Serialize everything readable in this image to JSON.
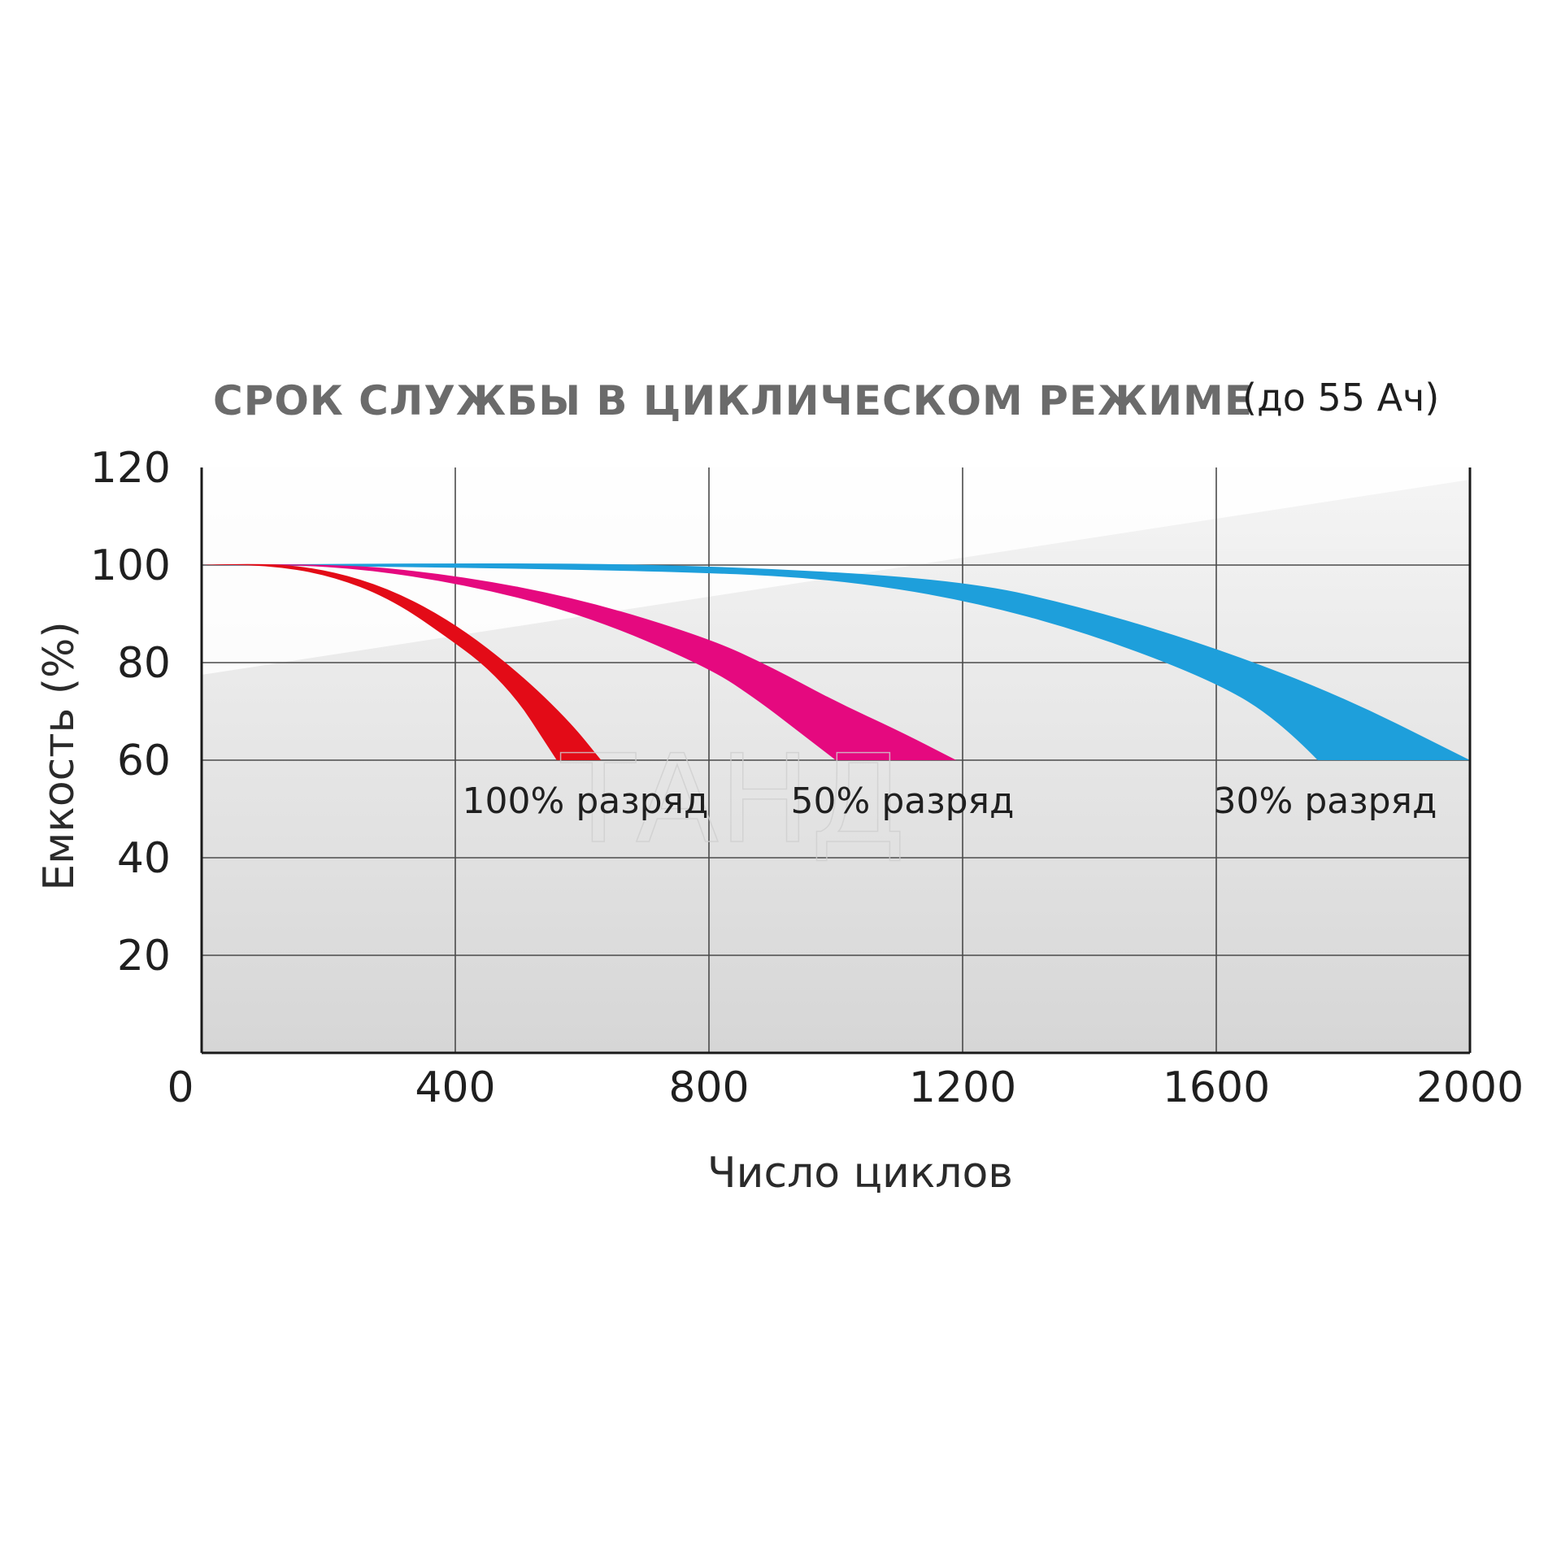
{
  "chart_data": {
    "type": "area",
    "title": "СРОК СЛУЖБЫ В ЦИКЛИЧЕСКОМ РЕЖИМЕ",
    "subtitle": "(до 55 Ач)",
    "xlabel": "Число циклов",
    "ylabel": "Емкость (%)",
    "xlim": [
      0,
      2000
    ],
    "ylim": [
      0,
      120
    ],
    "x_ticks": [
      "0",
      "400",
      "800",
      "1200",
      "1600",
      "2000"
    ],
    "x_tick_values": [
      0,
      400,
      800,
      1200,
      1600,
      2000
    ],
    "y_ticks": [
      "20",
      "40",
      "60",
      "80",
      "100",
      "120"
    ],
    "y_tick_values": [
      20,
      40,
      60,
      80,
      100,
      120
    ],
    "grid": true,
    "series": [
      {
        "name": "100% разряд",
        "color": "#e30b17",
        "upper": [
          [
            0,
            100
          ],
          [
            100,
            100.5
          ],
          [
            200,
            99
          ],
          [
            300,
            95
          ],
          [
            400,
            88
          ],
          [
            500,
            78
          ],
          [
            580,
            68
          ],
          [
            630,
            60
          ]
        ],
        "lower": [
          [
            0,
            100
          ],
          [
            100,
            100
          ],
          [
            200,
            98
          ],
          [
            300,
            93
          ],
          [
            400,
            84
          ],
          [
            450,
            79
          ],
          [
            500,
            72
          ],
          [
            540,
            64
          ],
          [
            560,
            60
          ]
        ]
      },
      {
        "name": "50% разряд",
        "color": "#e5097f",
        "upper": [
          [
            0,
            100
          ],
          [
            200,
            100.5
          ],
          [
            400,
            98
          ],
          [
            600,
            93
          ],
          [
            800,
            85
          ],
          [
            900,
            79
          ],
          [
            1000,
            72
          ],
          [
            1100,
            66
          ],
          [
            1190,
            60
          ]
        ],
        "lower": [
          [
            0,
            100
          ],
          [
            200,
            100
          ],
          [
            400,
            96.5
          ],
          [
            600,
            90
          ],
          [
            800,
            79
          ],
          [
            880,
            72
          ],
          [
            940,
            66
          ],
          [
            980,
            62
          ],
          [
            1000,
            60
          ]
        ]
      },
      {
        "name": "30% разряд",
        "color": "#1e9fdb",
        "upper": [
          [
            0,
            100
          ],
          [
            400,
            100.5
          ],
          [
            800,
            100
          ],
          [
            1200,
            97
          ],
          [
            1400,
            91
          ],
          [
            1600,
            83
          ],
          [
            1800,
            73
          ],
          [
            2000,
            60
          ]
        ],
        "lower": [
          [
            0,
            100
          ],
          [
            400,
            99.5
          ],
          [
            800,
            98.5
          ],
          [
            1000,
            97
          ],
          [
            1200,
            93
          ],
          [
            1400,
            86
          ],
          [
            1600,
            76
          ],
          [
            1700,
            68
          ],
          [
            1760,
            60
          ]
        ]
      }
    ],
    "watermark": "ТАНД"
  }
}
